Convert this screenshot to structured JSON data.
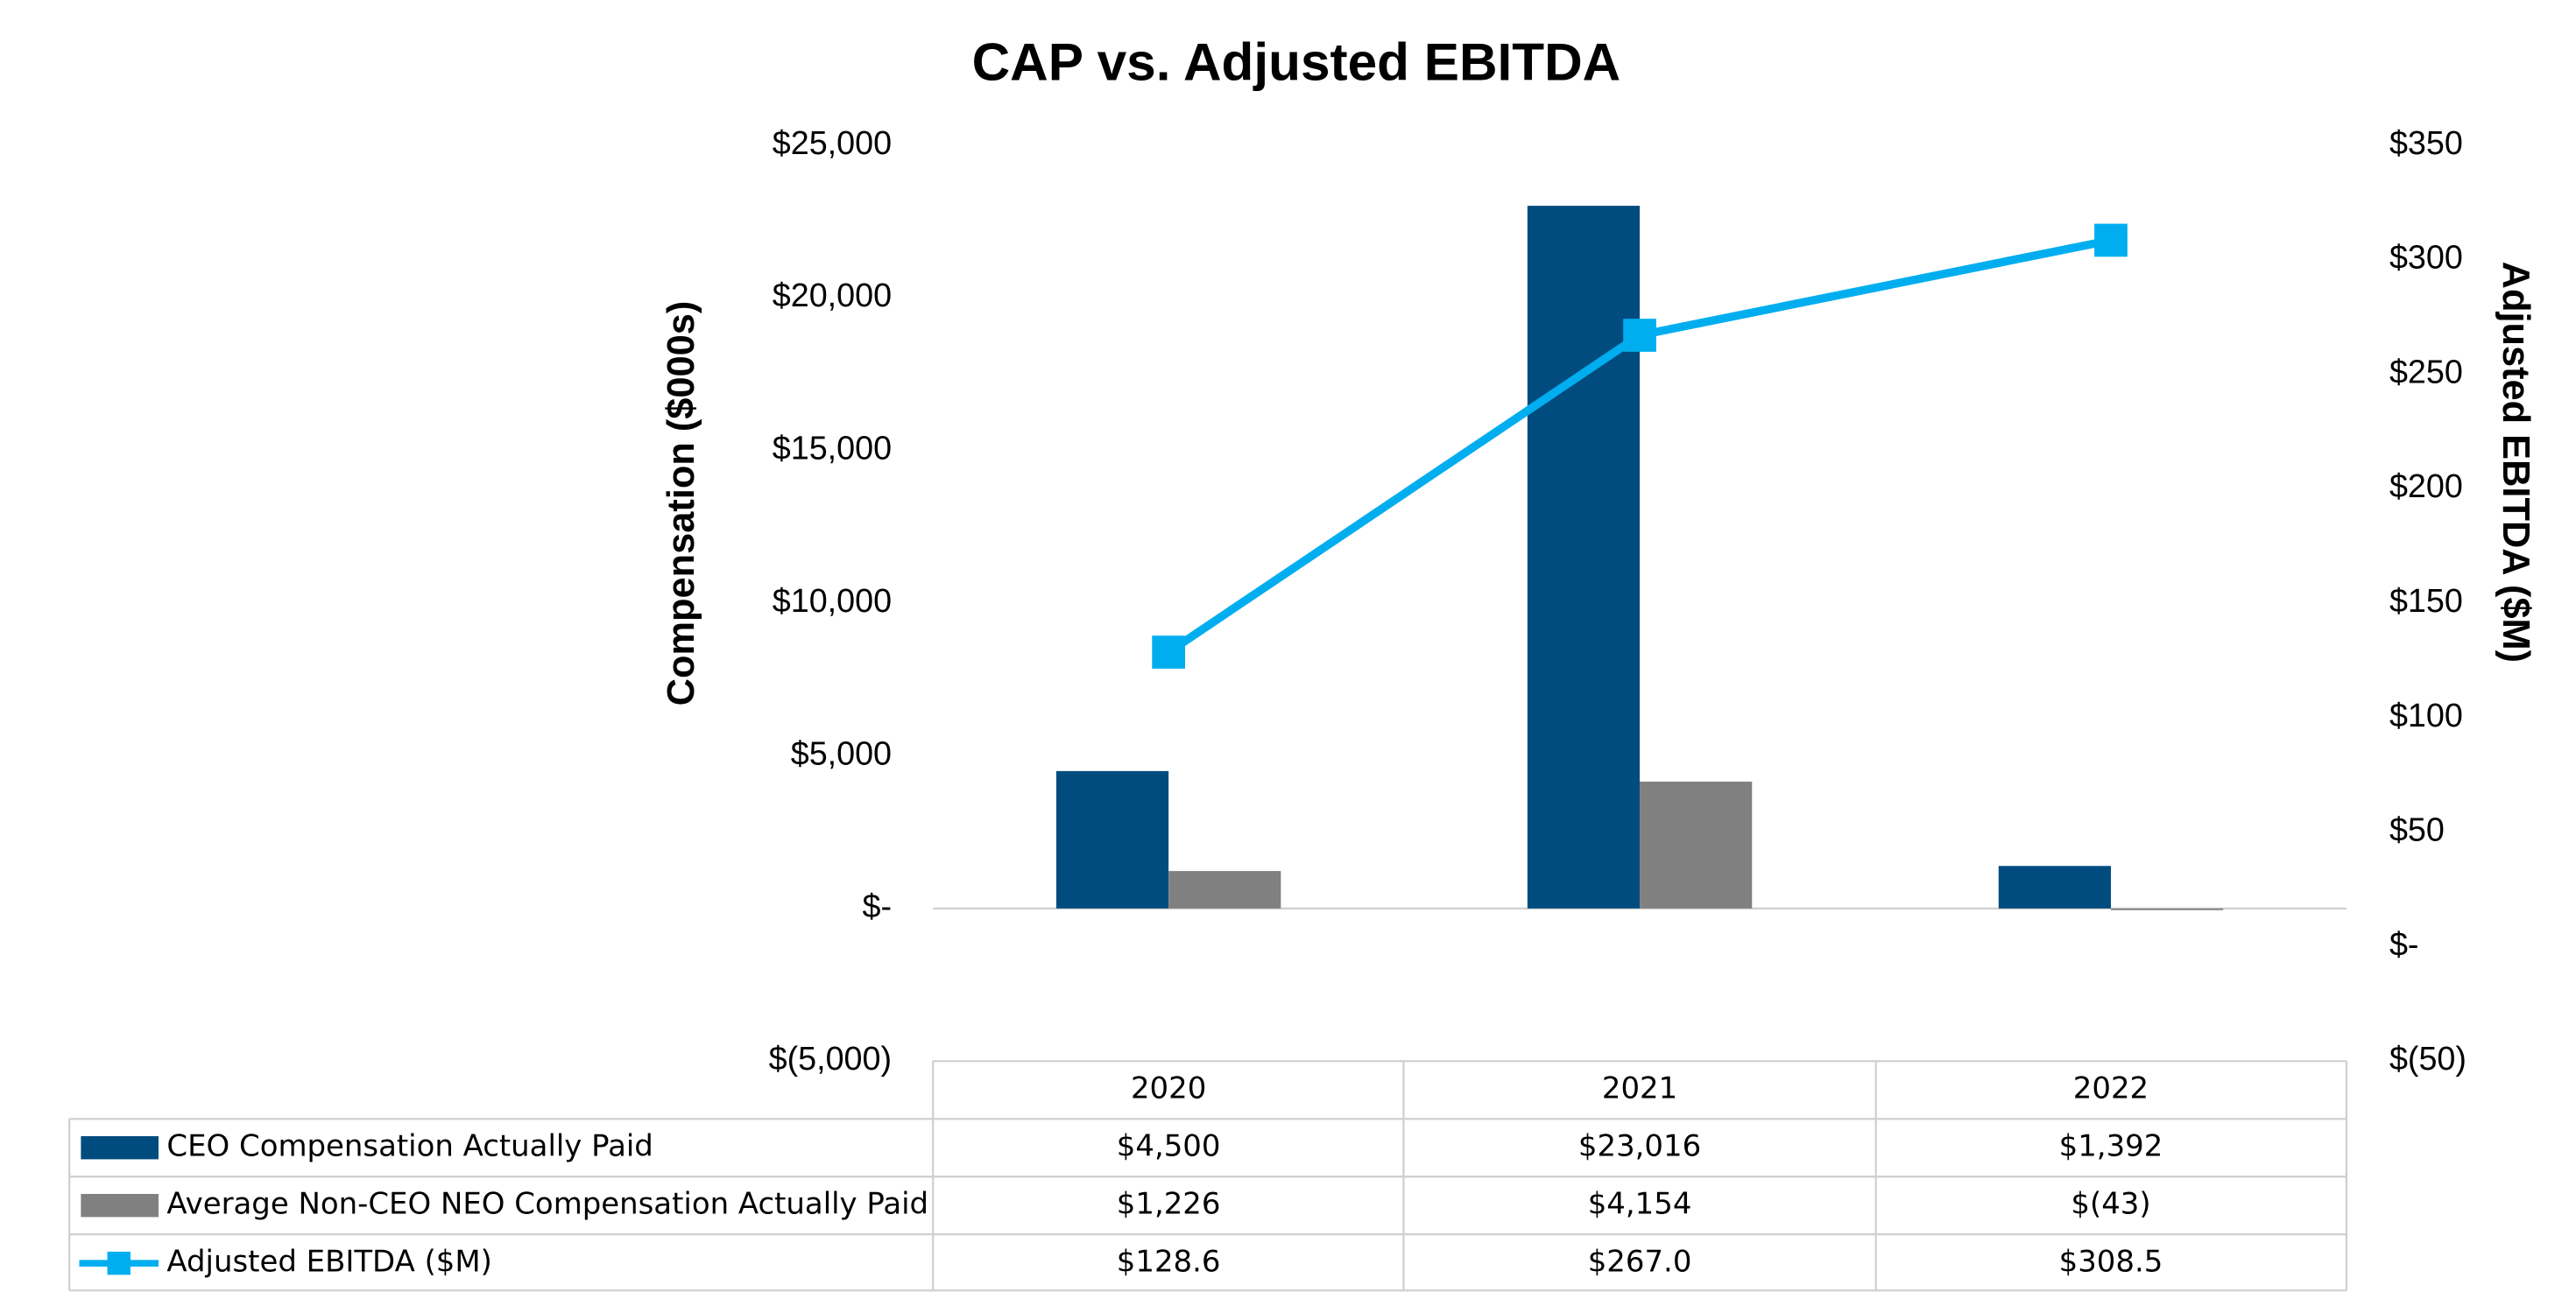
{
  "chart_data": {
    "type": "bar_line_table",
    "title": "CAP vs. Adjusted EBITDA",
    "y_label": "Compensation ($000s)",
    "y2_label": "Adjusted EBITDA ($M)",
    "categories": [
      "2020",
      "2021",
      "2022"
    ],
    "series": [
      {
        "name": "CEO Compensation Actually Paid",
        "type": "bar",
        "color": "#004c7f",
        "values": [
          4500,
          23016,
          1392
        ],
        "value_labels": [
          "$4,500",
          "$23,016",
          "$1,392"
        ]
      },
      {
        "name": "Average Non-CEO NEO Compensation Actually Paid",
        "type": "bar",
        "color": "#808080",
        "values": [
          1226,
          4154,
          -43
        ],
        "value_labels": [
          "$1,226",
          "$4,154",
          "$(43)"
        ]
      },
      {
        "name": "Adjusted EBITDA ($M)",
        "type": "line",
        "axis": "y2",
        "color": "#00aeef",
        "values": [
          128.6,
          267.0,
          308.5
        ],
        "value_labels": [
          "$128.6",
          "$267.0",
          "$308.5"
        ]
      }
    ],
    "ylim": [
      -5000,
      25000
    ],
    "yticks": [
      {
        "value": -5000,
        "label": "$(5,000)"
      },
      {
        "value": 0,
        "label": "$-"
      },
      {
        "value": 5000,
        "label": "$5,000"
      },
      {
        "value": 10000,
        "label": "$10,000"
      },
      {
        "value": 15000,
        "label": "$15,000"
      },
      {
        "value": 20000,
        "label": "$20,000"
      },
      {
        "value": 25000,
        "label": "$25,000"
      }
    ],
    "y2lim": [
      -50,
      350
    ],
    "y2ticks": [
      {
        "value": -50,
        "label": "$(50)"
      },
      {
        "value": 0,
        "label": "$-"
      },
      {
        "value": 50,
        "label": "$50"
      },
      {
        "value": 100,
        "label": "$100"
      },
      {
        "value": 150,
        "label": "$150"
      },
      {
        "value": 200,
        "label": "$200"
      },
      {
        "value": 250,
        "label": "$250"
      },
      {
        "value": 300,
        "label": "$300"
      },
      {
        "value": 350,
        "label": "$350"
      }
    ],
    "grid": false
  }
}
